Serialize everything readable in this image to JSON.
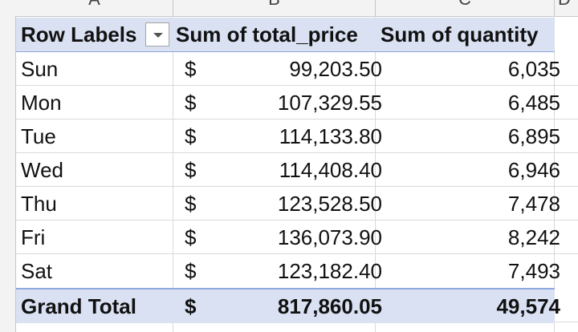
{
  "columns": {
    "a": "A",
    "b": "B",
    "c": "C",
    "d": "D"
  },
  "pivot": {
    "headers": {
      "row_labels": "Row Labels",
      "sum_total_price": "Sum of total_price",
      "sum_quantity": "Sum of quantity"
    },
    "rows": [
      {
        "label": "Sun",
        "currency": "$",
        "total_price": "99,203.50",
        "quantity": "6,035"
      },
      {
        "label": "Mon",
        "currency": "$",
        "total_price": "107,329.55",
        "quantity": "6,485"
      },
      {
        "label": "Tue",
        "currency": "$",
        "total_price": "114,133.80",
        "quantity": "6,895"
      },
      {
        "label": "Wed",
        "currency": "$",
        "total_price": "114,408.40",
        "quantity": "6,946"
      },
      {
        "label": "Thu",
        "currency": "$",
        "total_price": "123,528.50",
        "quantity": "7,478"
      },
      {
        "label": "Fri",
        "currency": "$",
        "total_price": "136,073.90",
        "quantity": "8,242"
      },
      {
        "label": "Sat",
        "currency": "$",
        "total_price": "123,182.40",
        "quantity": "7,493"
      }
    ],
    "grand_total": {
      "label": "Grand Total",
      "currency": "$",
      "total_price": "817,860.05",
      "quantity": "49,574"
    }
  },
  "icons": {
    "filter": "dropdown-arrow-icon"
  },
  "colors": {
    "header_fill": "#d9e1f2",
    "header_border": "#8ea9db"
  }
}
